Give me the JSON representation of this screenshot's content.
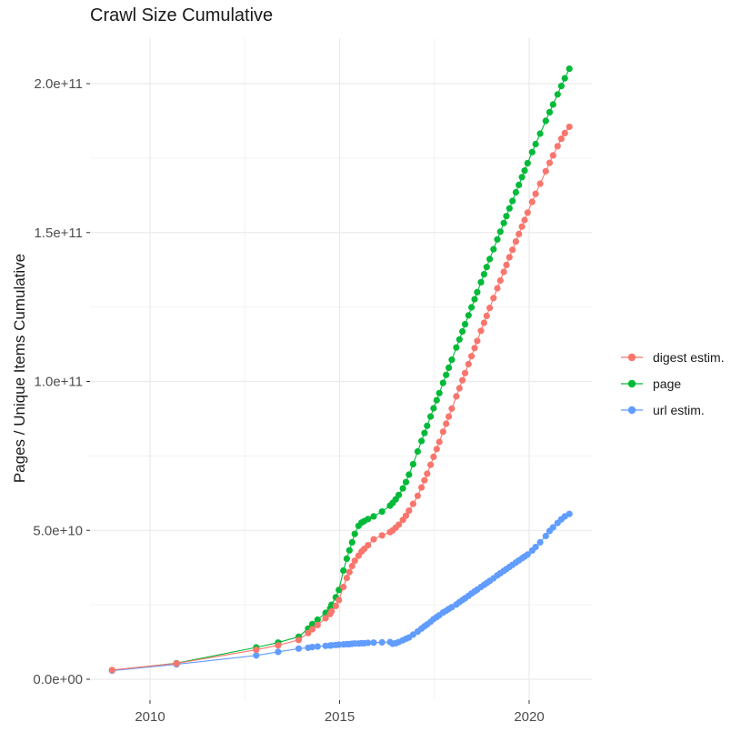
{
  "chart_data": {
    "type": "line",
    "marker": "point",
    "title": "Crawl Size Cumulative",
    "xlabel": "",
    "ylabel": "Pages / Unique Items Cumulative",
    "x_unit": "year (decimal, Common Crawl crawl dates)",
    "values_scale": 1000000000.0,
    "values_unit": "pages / unique items (values below are in billions)",
    "xlim": [
      2008.4,
      2021.66
    ],
    "ylim": [
      0,
      215000000000.0
    ],
    "grid": true,
    "legend_position": "right",
    "x_tick_values": [
      2010,
      2015,
      2020
    ],
    "x_tick_labels": [
      "2010",
      "2015",
      "2020"
    ],
    "x_minor_ticks": [
      2012.5,
      2017.5
    ],
    "y_tick_values": [
      0,
      50,
      100,
      150,
      200
    ],
    "y_tick_labels": [
      "0.0e+00",
      "5.0e+10",
      "1.0e+11",
      "1.5e+11",
      "2.0e+11"
    ],
    "y_minor_ticks": [
      25,
      75,
      125,
      175
    ],
    "draw_order": [
      "page",
      "url estim.",
      "digest estim."
    ],
    "x": [
      2009.0,
      2010.7,
      2012.8,
      2013.38,
      2013.92,
      2014.17,
      2014.28,
      2014.42,
      2014.63,
      2014.75,
      2014.79,
      2014.9,
      2014.98,
      2015.1,
      2015.19,
      2015.26,
      2015.33,
      2015.4,
      2015.5,
      2015.58,
      2015.65,
      2015.75,
      2015.9,
      2016.12,
      2016.33,
      2016.4,
      2016.48,
      2016.56,
      2016.67,
      2016.75,
      2016.83,
      2016.94,
      2017.06,
      2017.16,
      2017.24,
      2017.31,
      2017.4,
      2017.48,
      2017.56,
      2017.63,
      2017.73,
      2017.81,
      2017.88,
      2017.96,
      2018.08,
      2018.16,
      2018.24,
      2018.31,
      2018.4,
      2018.48,
      2018.56,
      2018.63,
      2018.73,
      2018.81,
      2018.88,
      2018.96,
      2019.06,
      2019.16,
      2019.24,
      2019.33,
      2019.4,
      2019.48,
      2019.56,
      2019.65,
      2019.73,
      2019.81,
      2019.88,
      2019.96,
      2020.08,
      2020.17,
      2020.29,
      2020.44,
      2020.54,
      2020.63,
      2020.75,
      2020.85,
      2020.94,
      2021.06
    ],
    "series": [
      {
        "name": "digest estim.",
        "color": "#F8766D",
        "values": [
          3.1,
          5.3,
          9.9,
          11.4,
          13.2,
          15.5,
          16.8,
          18.2,
          20.5,
          21.9,
          22.8,
          24.6,
          26.6,
          31,
          34,
          36,
          38,
          39.8,
          41.5,
          42.9,
          43.8,
          45,
          47,
          48.3,
          49.4,
          50,
          50.9,
          51.9,
          53.5,
          54.9,
          56.6,
          58.9,
          61.6,
          64.4,
          66.8,
          69,
          72,
          74.7,
          77.3,
          79.7,
          83.1,
          85.8,
          88.2,
          90.9,
          95,
          97.7,
          100.4,
          102.8,
          105.8,
          108.5,
          111.2,
          113.6,
          117,
          119.7,
          122,
          124.7,
          128,
          131.3,
          133.9,
          136.8,
          139.1,
          141.7,
          144.2,
          147,
          149.5,
          152,
          154.2,
          156.7,
          160.3,
          163,
          166.4,
          170.6,
          173.4,
          175.9,
          179,
          181.5,
          183.4,
          185.5
        ]
      },
      {
        "name": "page",
        "color": "#00BA38",
        "values": [
          3.0,
          5.4,
          10.7,
          12.3,
          14.3,
          17,
          18.5,
          20,
          22.3,
          23.8,
          25,
          27.5,
          30,
          36.5,
          40.5,
          43.3,
          46,
          48.8,
          51.5,
          52.6,
          53.1,
          53.8,
          54.7,
          56.3,
          58.3,
          59.2,
          60.4,
          61.9,
          64.1,
          66.2,
          68.7,
          72.2,
          76.5,
          80,
          82.7,
          85.1,
          88.2,
          91,
          93.7,
          96.1,
          99.5,
          102.2,
          104.6,
          107.3,
          111.4,
          114.1,
          116.8,
          119.2,
          122.2,
          124.9,
          127.6,
          130,
          133.3,
          136,
          138.4,
          141.1,
          144.4,
          147.7,
          150.3,
          153.2,
          155.5,
          158.1,
          160.6,
          163.5,
          166,
          168.6,
          170.8,
          173.3,
          177,
          179.7,
          183.2,
          187.5,
          190.4,
          193,
          196.4,
          199.2,
          201.8,
          205
        ]
      },
      {
        "name": "url estim.",
        "color": "#619CFF",
        "values": [
          2.9,
          5.0,
          8.0,
          9.2,
          10.3,
          10.6,
          10.8,
          11,
          11.2,
          11.3,
          11.4,
          11.5,
          11.6,
          11.7,
          11.8,
          11.8,
          11.9,
          12,
          12,
          12.1,
          12.1,
          12.2,
          12.3,
          12.4,
          12.5,
          11.9,
          12.1,
          12.5,
          13.1,
          13.6,
          14,
          15,
          16,
          17,
          17.8,
          18.4,
          19.3,
          20.2,
          20.9,
          21.5,
          22.4,
          23,
          23.6,
          24.2,
          25.1,
          25.9,
          26.6,
          27.2,
          28,
          28.8,
          29.5,
          30.1,
          31,
          31.7,
          32.3,
          33,
          33.9,
          34.9,
          35.6,
          36.4,
          37,
          37.7,
          38.4,
          39.2,
          39.9,
          40.6,
          41.2,
          41.9,
          43.2,
          44.4,
          46,
          48.1,
          49.8,
          51,
          52.5,
          53.7,
          54.7,
          55.5
        ]
      }
    ]
  }
}
